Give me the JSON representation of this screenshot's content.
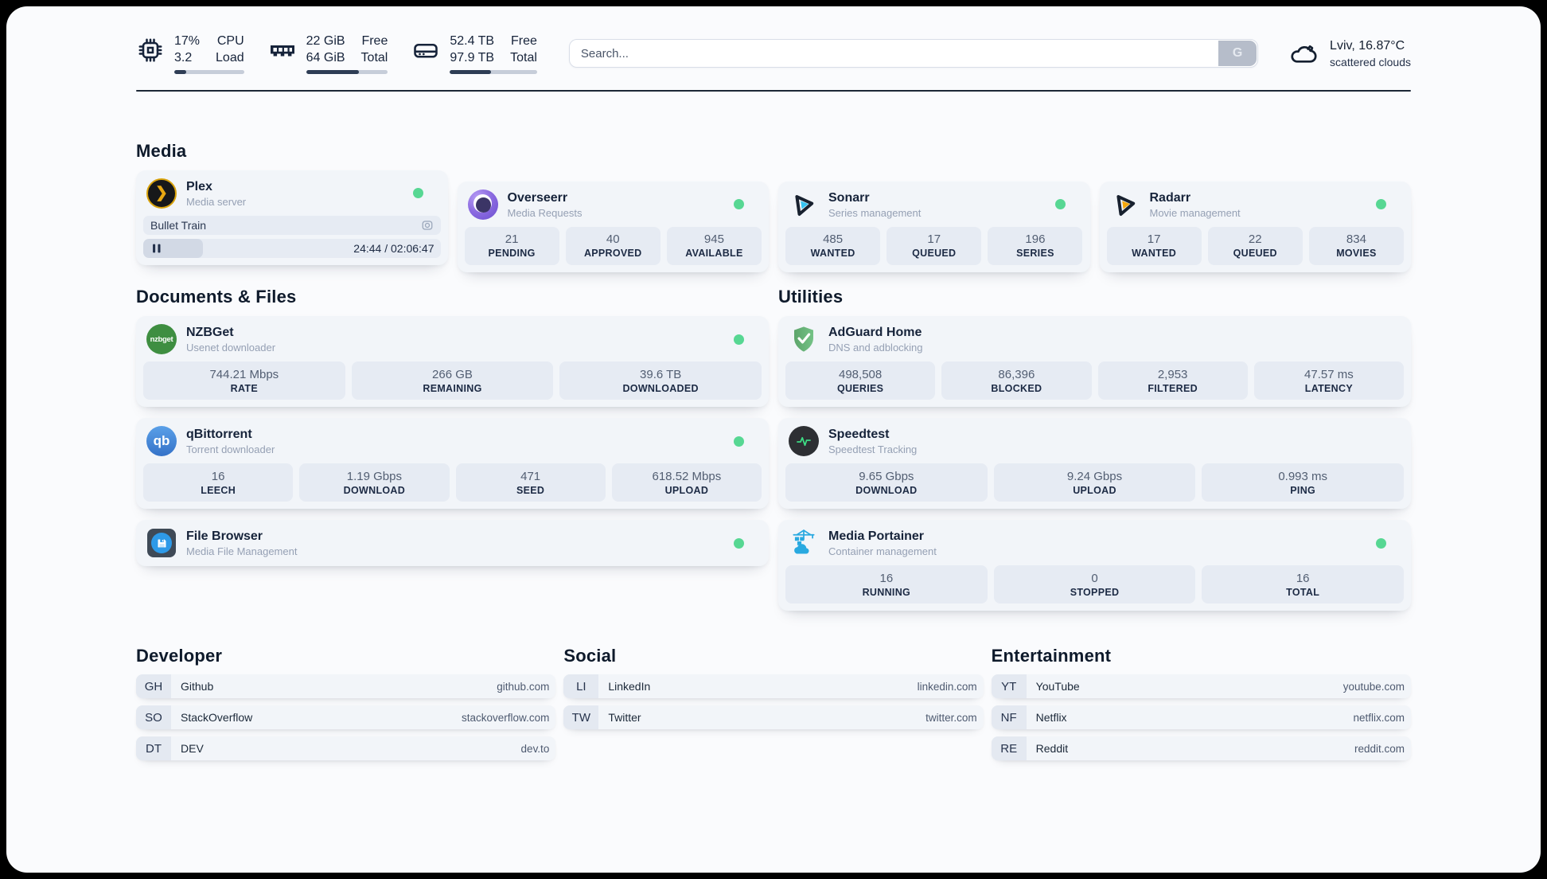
{
  "topbar": {
    "cpu": {
      "value_top": "17%",
      "value_bottom": "3.2",
      "label_top": "CPU",
      "label_bottom": "Load",
      "bar_percent": 17
    },
    "memory": {
      "value_top": "22 GiB",
      "value_bottom": "64 GiB",
      "label_top": "Free",
      "label_bottom": "Total",
      "bar_percent": 65
    },
    "disk": {
      "value_top": "52.4 TB",
      "value_bottom": "97.9 TB",
      "label_top": "Free",
      "label_bottom": "Total",
      "bar_percent": 47
    },
    "search": {
      "placeholder": "Search...",
      "button_label": "G"
    },
    "weather": {
      "location_temp": "Lviv, 16.87°C",
      "condition": "scattered clouds"
    }
  },
  "sections": {
    "media": {
      "title": "Media"
    },
    "documents": {
      "title": "Documents & Files"
    },
    "utilities": {
      "title": "Utilities"
    },
    "developer": {
      "title": "Developer"
    },
    "social": {
      "title": "Social"
    },
    "entertainment": {
      "title": "Entertainment"
    }
  },
  "media_cards": {
    "plex": {
      "name": "Plex",
      "subtitle": "Media server",
      "now_playing": "Bullet Train",
      "time_display": "24:44 / 02:06:47",
      "progress_percent": 20
    },
    "overseerr": {
      "name": "Overseerr",
      "subtitle": "Media Requests",
      "stats": [
        {
          "value": "21",
          "label": "PENDING"
        },
        {
          "value": "40",
          "label": "APPROVED"
        },
        {
          "value": "945",
          "label": "AVAILABLE"
        }
      ]
    },
    "sonarr": {
      "name": "Sonarr",
      "subtitle": "Series management",
      "stats": [
        {
          "value": "485",
          "label": "WANTED"
        },
        {
          "value": "17",
          "label": "QUEUED"
        },
        {
          "value": "196",
          "label": "SERIES"
        }
      ]
    },
    "radarr": {
      "name": "Radarr",
      "subtitle": "Movie management",
      "stats": [
        {
          "value": "17",
          "label": "WANTED"
        },
        {
          "value": "22",
          "label": "QUEUED"
        },
        {
          "value": "834",
          "label": "MOVIES"
        }
      ]
    }
  },
  "documents_cards": {
    "nzbget": {
      "name": "NZBGet",
      "subtitle": "Usenet downloader",
      "stats": [
        {
          "value": "744.21 Mbps",
          "label": "RATE"
        },
        {
          "value": "266 GB",
          "label": "REMAINING"
        },
        {
          "value": "39.6 TB",
          "label": "DOWNLOADED"
        }
      ]
    },
    "qbittorrent": {
      "name": "qBittorrent",
      "subtitle": "Torrent downloader",
      "stats": [
        {
          "value": "16",
          "label": "LEECH"
        },
        {
          "value": "1.19 Gbps",
          "label": "DOWNLOAD"
        },
        {
          "value": "471",
          "label": "SEED"
        },
        {
          "value": "618.52 Mbps",
          "label": "UPLOAD"
        }
      ]
    },
    "filebrowser": {
      "name": "File Browser",
      "subtitle": "Media File Management"
    }
  },
  "utilities_cards": {
    "adguard": {
      "name": "AdGuard Home",
      "subtitle": "DNS and adblocking",
      "stats": [
        {
          "value": "498,508",
          "label": "QUERIES"
        },
        {
          "value": "86,396",
          "label": "BLOCKED"
        },
        {
          "value": "2,953",
          "label": "FILTERED"
        },
        {
          "value": "47.57 ms",
          "label": "LATENCY"
        }
      ]
    },
    "speedtest": {
      "name": "Speedtest",
      "subtitle": "Speedtest Tracking",
      "stats": [
        {
          "value": "9.65 Gbps",
          "label": "DOWNLOAD"
        },
        {
          "value": "9.24 Gbps",
          "label": "UPLOAD"
        },
        {
          "value": "0.993 ms",
          "label": "PING"
        }
      ]
    },
    "portainer": {
      "name": "Media Portainer",
      "subtitle": "Container management",
      "stats": [
        {
          "value": "16",
          "label": "RUNNING"
        },
        {
          "value": "0",
          "label": "STOPPED"
        },
        {
          "value": "16",
          "label": "TOTAL"
        }
      ]
    }
  },
  "bookmarks": {
    "developer": [
      {
        "abbr": "GH",
        "name": "Github",
        "url": "github.com"
      },
      {
        "abbr": "SO",
        "name": "StackOverflow",
        "url": "stackoverflow.com"
      },
      {
        "abbr": "DT",
        "name": "DEV",
        "url": "dev.to"
      }
    ],
    "social": [
      {
        "abbr": "LI",
        "name": "LinkedIn",
        "url": "linkedin.com"
      },
      {
        "abbr": "TW",
        "name": "Twitter",
        "url": "twitter.com"
      }
    ],
    "entertainment": [
      {
        "abbr": "YT",
        "name": "YouTube",
        "url": "youtube.com"
      },
      {
        "abbr": "NF",
        "name": "Netflix",
        "url": "netflix.com"
      },
      {
        "abbr": "RE",
        "name": "Reddit",
        "url": "reddit.com"
      }
    ]
  },
  "icons": {
    "plex_glyph": "❯",
    "nzbget_text": "nzbget",
    "qbittorrent_text": "qb"
  },
  "colors": {
    "status_online_green": "#57d793",
    "plex_amber": "#e5a00d",
    "sonarr_cyan": "#35c3f2",
    "radarr_amber": "#f5a70c",
    "qbittorrent_blue": "#4187d6",
    "nzbget_green": "#3e8e41",
    "adguard_green": "#68b87a",
    "speedtest_green": "#3ddc84",
    "portainer_blue": "#29a9e0",
    "divider_dark": "#1c2736"
  }
}
